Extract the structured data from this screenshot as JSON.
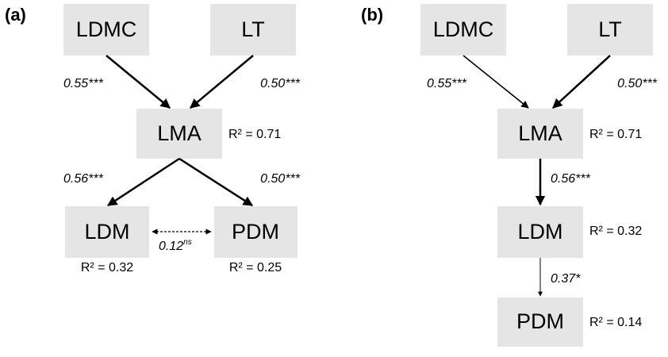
{
  "panels": [
    {
      "label": "(a)",
      "nodes": [
        {
          "name": "LDMC"
        },
        {
          "name": "LT"
        },
        {
          "name": "LMA",
          "r2": "R² = 0.71"
        },
        {
          "name": "LDM",
          "r2": "R² = 0.32"
        },
        {
          "name": "PDM",
          "r2": "R² = 0.25"
        }
      ],
      "edges": [
        {
          "label": "0.55***"
        },
        {
          "label": "0.50***"
        },
        {
          "label": "0.56***"
        },
        {
          "label": "0.50***"
        },
        {
          "label": "0.12",
          "sup": "ns"
        }
      ]
    },
    {
      "label": "(b)",
      "nodes": [
        {
          "name": "LDMC"
        },
        {
          "name": "LT"
        },
        {
          "name": "LMA",
          "r2": "R² = 0.71"
        },
        {
          "name": "LDM",
          "r2": "R² = 0.32"
        },
        {
          "name": "PDM",
          "r2": "R² = 0.14"
        }
      ],
      "edges": [
        {
          "label": "0.55***"
        },
        {
          "label": "0.50***"
        },
        {
          "label": "0.56***"
        },
        {
          "label": "0.37*"
        }
      ]
    }
  ]
}
